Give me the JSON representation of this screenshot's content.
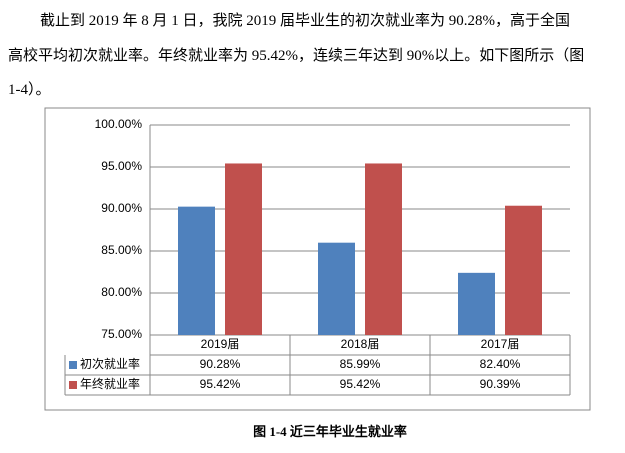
{
  "paragraph_lines": [
    "截止到 2019 年 8 月 1 日，我院 2019 届毕业生的初次就业率为 90.28%，高于全国",
    "高校平均初次就业率。年终就业率为 95.42%，连续三年达到 90%以上。如下图所示（图",
    "1-4）。"
  ],
  "chart_data": {
    "type": "bar",
    "categories": [
      "2019届",
      "2018届",
      "2017届"
    ],
    "series": [
      {
        "name": "初次就业率",
        "color": "#4f81bd",
        "values": [
          90.28,
          85.99,
          82.4
        ],
        "value_labels": [
          "90.28%",
          "85.99%",
          "82.40%"
        ]
      },
      {
        "name": "年终就业率",
        "color": "#c0504d",
        "values": [
          95.42,
          95.42,
          90.39
        ],
        "value_labels": [
          "95.42%",
          "95.42%",
          "90.39%"
        ]
      }
    ],
    "ylim": [
      75,
      100
    ],
    "yticks": [
      {
        "value": 75,
        "label": "75.00%"
      },
      {
        "value": 80,
        "label": "80.00%"
      },
      {
        "value": 85,
        "label": "85.00%"
      },
      {
        "value": 90,
        "label": "90.00%"
      },
      {
        "value": 95,
        "label": "95.00%"
      },
      {
        "value": 100,
        "label": "100.00%"
      }
    ],
    "grid": true
  },
  "caption": "图 1-4   近三年毕业生就业率"
}
